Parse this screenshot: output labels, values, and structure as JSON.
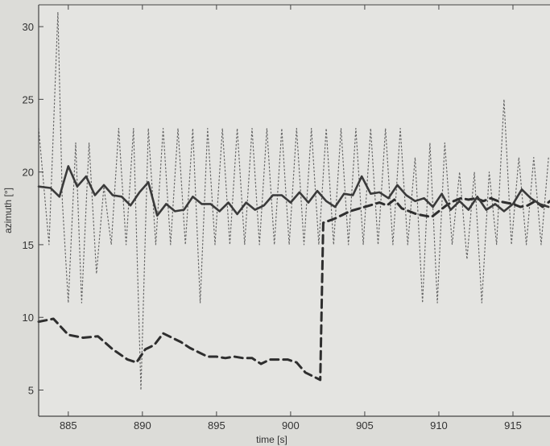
{
  "chart_data": {
    "type": "line",
    "title": "",
    "xlabel": "time [s]",
    "ylabel": "azimuth [°]",
    "xlim": [
      883,
      917.5
    ],
    "ylim": [
      3.2,
      31.5
    ],
    "xticks": [
      885,
      890,
      895,
      900,
      905,
      910,
      915
    ],
    "yticks": [
      5,
      10,
      15,
      20,
      25,
      30
    ],
    "grid": false,
    "legend": "none",
    "colors": {
      "solid": "#3a3a3a",
      "dashed": "#2e2e2e",
      "dotted": "#666666",
      "axes": "#444444"
    },
    "series": [
      {
        "style": "solid",
        "x": [
          883,
          883.8,
          884.4,
          885,
          885.6,
          886.2,
          886.8,
          887.4,
          888,
          888.6,
          889.2,
          889.8,
          890.4,
          891,
          891.6,
          892.2,
          892.8,
          893.4,
          894,
          894.6,
          895.2,
          895.8,
          896.4,
          897,
          897.6,
          898.2,
          898.8,
          899.4,
          900,
          900.6,
          901.2,
          901.8,
          902.4,
          903,
          903.6,
          904.2,
          904.8,
          905.4,
          906,
          906.6,
          907.2,
          907.8,
          908.4,
          909,
          909.6,
          910.2,
          910.8,
          911.4,
          912,
          912.6,
          913.2,
          913.8,
          914.4,
          915,
          915.6,
          916.2,
          916.8,
          917.4
        ],
        "y": [
          19,
          18.9,
          18.3,
          20.4,
          19,
          19.7,
          18.4,
          19.1,
          18.4,
          18.3,
          17.7,
          18.6,
          19.3,
          17,
          17.8,
          17.3,
          17.4,
          18.3,
          17.8,
          17.8,
          17.3,
          17.9,
          17.1,
          17.9,
          17.4,
          17.7,
          18.4,
          18.4,
          17.9,
          18.6,
          17.9,
          18.7,
          18,
          17.6,
          18.5,
          18.4,
          19.7,
          18.5,
          18.6,
          18.2,
          19.1,
          18.4,
          18,
          18.2,
          17.6,
          18.5,
          17.4,
          18,
          17.4,
          18.3,
          17.4,
          17.8,
          17.3,
          17.8,
          18.8,
          18.2,
          17.8,
          17.6
        ]
      },
      {
        "style": "dashed",
        "x": [
          883,
          884,
          885,
          886,
          887,
          888,
          889,
          889.6,
          890.2,
          890.8,
          891.4,
          892,
          892.6,
          893.2,
          893.8,
          894.4,
          895,
          895.6,
          896.2,
          896.8,
          897.4,
          898,
          898.6,
          899.2,
          899.8,
          900.4,
          901,
          901.6,
          902,
          902.2,
          903,
          904,
          905,
          906,
          906.5,
          907,
          907.5,
          908,
          908.5,
          909,
          909.5,
          910,
          910.5,
          911,
          911.5,
          912,
          912.5,
          913,
          913.5,
          914,
          914.5,
          915,
          915.5,
          916,
          916.5,
          917,
          917.5
        ],
        "y": [
          9.7,
          9.9,
          8.8,
          8.6,
          8.7,
          7.8,
          7.1,
          6.9,
          7.8,
          8.1,
          8.9,
          8.6,
          8.3,
          7.9,
          7.6,
          7.3,
          7.3,
          7.2,
          7.3,
          7.2,
          7.2,
          6.8,
          7.1,
          7.1,
          7.1,
          6.9,
          6.2,
          5.9,
          5.7,
          16.5,
          16.8,
          17.3,
          17.6,
          17.9,
          17.7,
          18.1,
          17.5,
          17.3,
          17.1,
          17.0,
          16.9,
          17.3,
          17.7,
          18.0,
          18.2,
          18.1,
          18.2,
          18.0,
          18.2,
          18.0,
          17.9,
          17.8,
          17.6,
          17.7,
          18.0,
          17.6,
          18.0
        ]
      },
      {
        "style": "dotted",
        "x": [
          883,
          883.7,
          884.3,
          884.6,
          885,
          885.5,
          885.9,
          886.4,
          886.9,
          887.4,
          887.9,
          888.4,
          888.9,
          889.4,
          889.9,
          890.4,
          890.9,
          891.4,
          891.9,
          892.4,
          892.9,
          893.4,
          893.9,
          894.4,
          894.9,
          895.4,
          895.9,
          896.4,
          896.9,
          897.4,
          897.9,
          898.4,
          898.9,
          899.4,
          899.9,
          900.4,
          900.9,
          901.4,
          901.9,
          902.4,
          902.9,
          903.4,
          903.9,
          904.4,
          904.9,
          905.4,
          905.9,
          906.4,
          906.9,
          907.4,
          907.9,
          908.4,
          908.9,
          909.4,
          909.9,
          910.4,
          910.9,
          911.4,
          911.9,
          912.4,
          912.9,
          913.4,
          913.9,
          914.4,
          914.9,
          915.4,
          915.9,
          916.4,
          916.9,
          917.4
        ],
        "y": [
          23,
          15,
          31,
          18,
          11,
          22,
          11,
          22,
          13,
          19,
          15,
          23,
          15,
          23,
          5,
          23,
          15,
          23,
          15,
          23,
          15,
          23,
          11,
          23,
          15,
          23,
          15,
          23,
          15,
          23,
          15,
          23,
          15,
          23,
          15,
          23,
          15,
          23,
          15,
          23,
          15,
          23,
          15,
          23,
          15,
          23,
          15,
          23,
          15,
          23,
          15,
          21,
          11,
          22,
          11,
          22,
          15,
          20,
          14,
          20,
          11,
          20,
          15,
          25,
          15,
          21,
          15,
          21,
          15,
          21
        ]
      }
    ]
  }
}
